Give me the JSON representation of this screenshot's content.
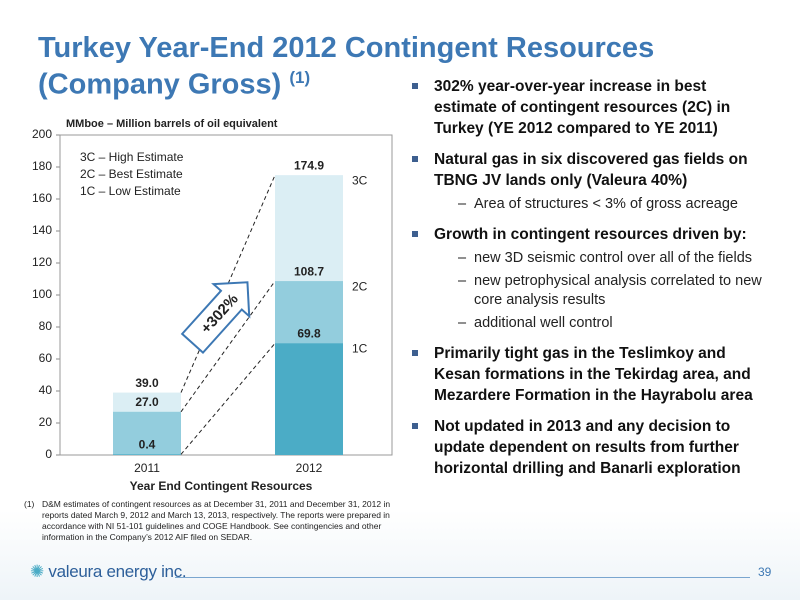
{
  "title_line1": "Turkey Year-End 2012 Contingent Resources",
  "title_line2": "(Company Gross)",
  "title_note": "(1)",
  "chart_data": {
    "type": "layered_bar",
    "y_axis_label": "MMboe – Million barrels of oil equivalent",
    "x_axis_label": "Year End Contingent Resources",
    "categories": [
      "2011",
      "2012"
    ],
    "series": [
      {
        "name": "1C – Low Estimate",
        "color": "#4bacc6",
        "values": [
          0.4,
          69.8
        ]
      },
      {
        "name": "2C – Best Estimate",
        "color": "#93cddd",
        "values": [
          27.0,
          108.7
        ],
        "value_labels": [
          "27.0",
          "108.7"
        ]
      },
      {
        "name": "3C – High Estimate",
        "color": "#dbeef4",
        "values": [
          39.0,
          174.9
        ],
        "value_labels": [
          "39.0",
          "174.9"
        ]
      }
    ],
    "end_labels": [
      "1C",
      "2C",
      "3C"
    ],
    "annotation": "+302%",
    "ylim": [
      0,
      200
    ],
    "yticks": [
      0,
      20,
      40,
      60,
      80,
      100,
      120,
      140,
      160,
      180,
      200
    ]
  },
  "bullets": [
    {
      "text": "302% year-over-year increase in best estimate of contingent resources (2C) in Turkey (YE 2012 compared to YE 2011)",
      "subs": []
    },
    {
      "text": "Natural gas in six discovered gas fields on TBNG JV lands only (Valeura 40%)",
      "subs": [
        "Area of structures < 3% of gross acreage"
      ]
    },
    {
      "text": "Growth in contingent resources driven by:",
      "subs": [
        "new 3D seismic control over all of the fields",
        "new petrophysical analysis correlated to new core analysis results",
        "additional well control"
      ]
    },
    {
      "text": "Primarily tight gas in the Teslimkoy and Kesan formations in the Tekirdag area, and Mezardere Formation in the Hayrabolu area",
      "subs": []
    },
    {
      "text": "Not updated in 2013 and any decision to update dependent on results from further horizontal drilling and Banarli exploration",
      "subs": []
    }
  ],
  "footnote": {
    "marker": "(1)",
    "text": "D&M estimates of contingent resources as at December 31, 2011 and December 31, 2012 in reports dated March 9, 2012 and March 13, 2013, respectively. The reports were prepared in accordance with NI 51-101 guidelines and COGE Handbook. See contingencies and other information in the Company’s 2012 AIF filed on SEDAR."
  },
  "logo": "valeura energy inc.",
  "page_number": "39"
}
